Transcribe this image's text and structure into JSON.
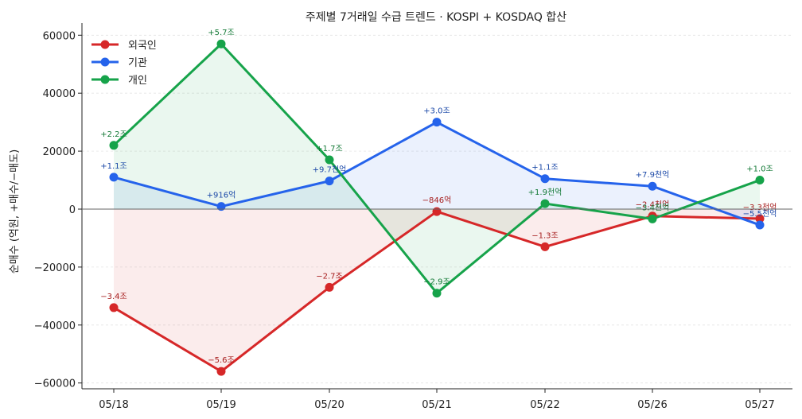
{
  "chart_data": {
    "type": "line",
    "title": "주제별 7거래일 수급 트렌드 · KOSPI + KOSDAQ 합산",
    "xlabel": "",
    "ylabel": "순매수 (억원, +매수/−매도)",
    "categories": [
      "05/18",
      "05/19",
      "05/20",
      "05/21",
      "05/22",
      "05/26",
      "05/27"
    ],
    "ylim": [
      -62000,
      62000
    ],
    "yticks": [
      -60000,
      -40000,
      -20000,
      0,
      20000,
      40000,
      60000
    ],
    "ytick_labels": [
      "−60000",
      "−40000",
      "−20000",
      "0",
      "20000",
      "40000",
      "60000"
    ],
    "grid": true,
    "legend_position": "top-left",
    "series": [
      {
        "name": "외국인",
        "color": "#d62728",
        "label_color": "#a61d1d",
        "values": [
          -34000,
          -56000,
          -27000,
          -846,
          -13000,
          -2400,
          -3300
        ],
        "labels": [
          "−3.4조",
          "−5.6조",
          "−2.7조",
          "−846억",
          "−1.3조",
          "−2.4천억",
          "−3.3천억"
        ]
      },
      {
        "name": "기관",
        "color": "#2563eb",
        "label_color": "#1d4aa8",
        "values": [
          11000,
          916,
          9700,
          30000,
          10500,
          7900,
          -5500
        ],
        "labels": [
          "+1.1조",
          "+916억",
          "+9.7천억",
          "+3.0조",
          "+1.1조",
          "+7.9천억",
          "−5.5천억"
        ]
      },
      {
        "name": "개인",
        "color": "#16a34a",
        "label_color": "#147a37",
        "values": [
          22000,
          57000,
          17000,
          -29000,
          1900,
          -3400,
          10000
        ],
        "labels": [
          "+2.2조",
          "+5.7조",
          "+1.7조",
          "−2.9조",
          "+1.9천억",
          "−3.4천억",
          "+1.0조"
        ]
      }
    ]
  }
}
